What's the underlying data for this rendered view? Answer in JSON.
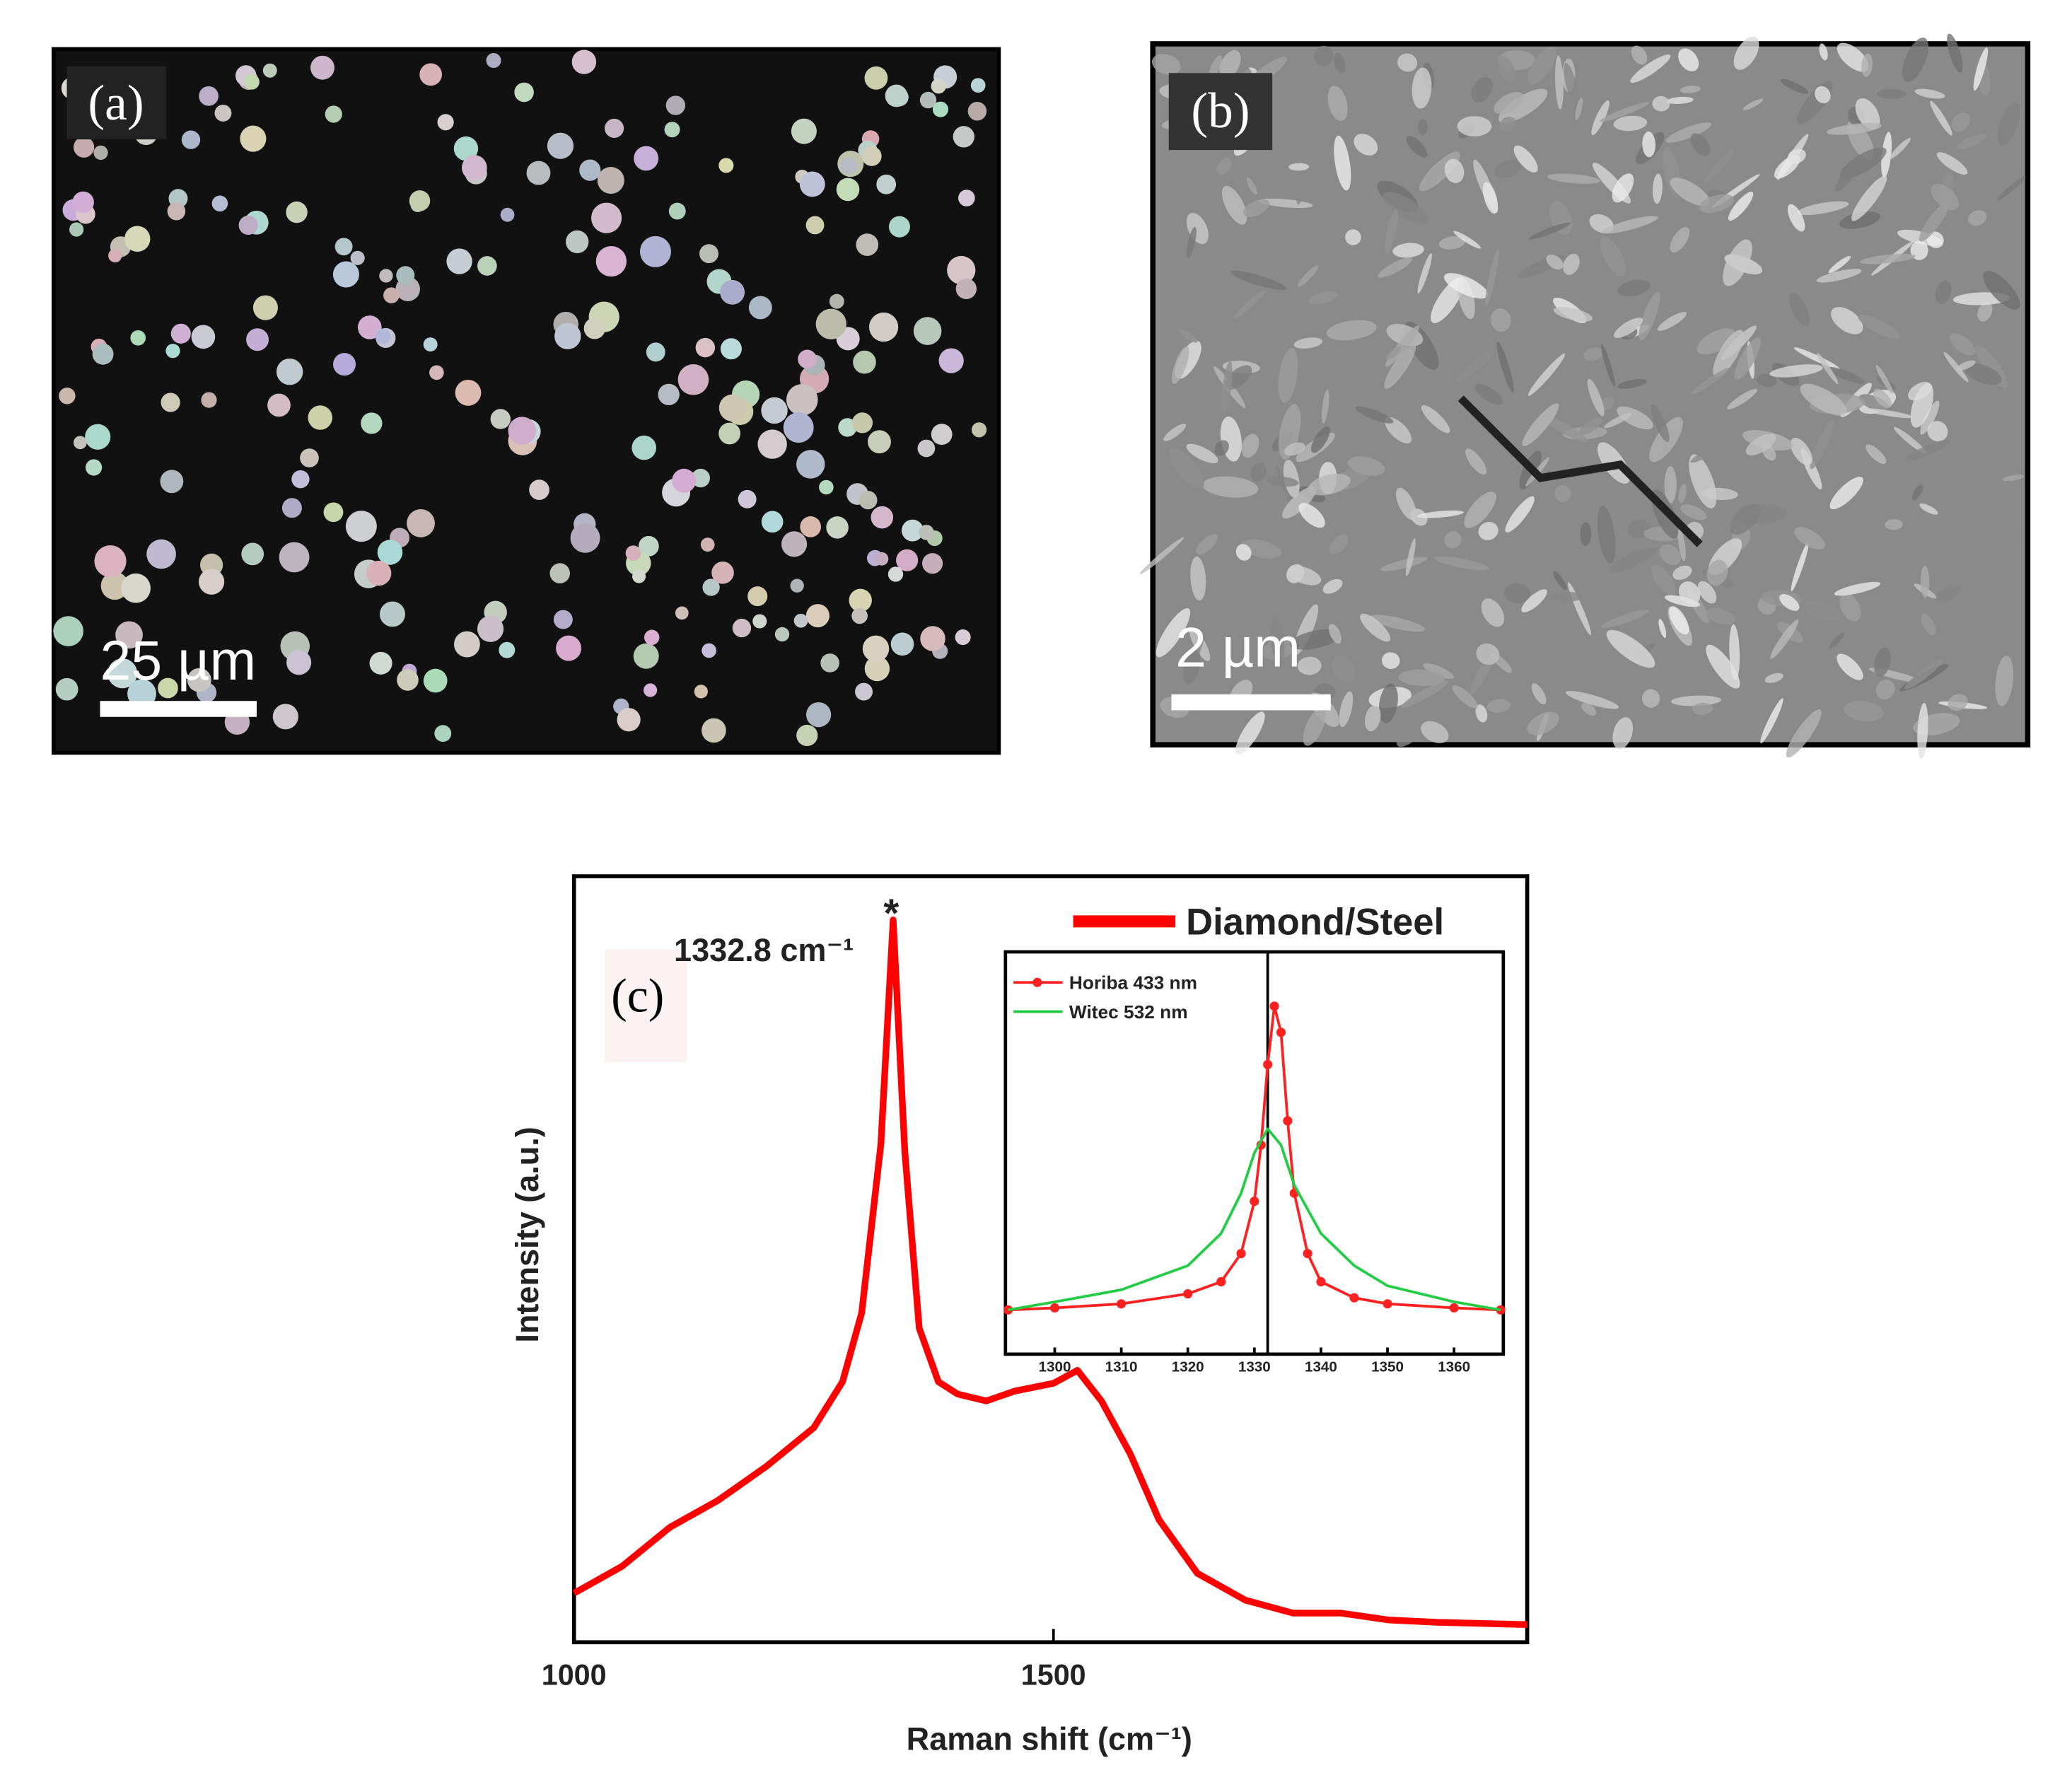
{
  "panels": [
    {
      "label": "(a)",
      "scale_bar": "25 µm"
    },
    {
      "label": "(b)",
      "scale_bar": "2 µm"
    }
  ],
  "chart_data": [
    {
      "type": "line",
      "panel_label": "(c)",
      "x_label": "Raman shift (cm⁻¹)",
      "y_label": "Intensity (a.u.)",
      "annotations": [
        "1332.8 cm⁻¹",
        "*"
      ],
      "xlim": [
        1000,
        1994
      ],
      "xticks": [
        1000,
        1500
      ],
      "ylim": [
        0,
        100
      ],
      "series": [
        {
          "name": "Diamond/Steel",
          "color": "#ff0000",
          "x": [
            1000,
            1050,
            1100,
            1150,
            1200,
            1250,
            1280,
            1300,
            1320,
            1332.8,
            1345,
            1360,
            1380,
            1400,
            1430,
            1460,
            1500,
            1525,
            1550,
            1580,
            1610,
            1650,
            1700,
            1750,
            1800,
            1850,
            1900,
            1994
          ],
          "values": [
            6.4,
            9.9,
            15,
            18.5,
            22.9,
            28,
            34,
            43,
            65,
            94.3,
            64,
            41,
            34,
            32.4,
            31.5,
            32.8,
            33.8,
            35.5,
            31.5,
            24.6,
            16,
            9,
            5.5,
            3.8,
            3.8,
            2.9,
            2.6,
            2.3
          ]
        }
      ]
    },
    {
      "type": "line",
      "xlim": [
        1292.6,
        1367.4
      ],
      "xticks": [
        1300,
        1310,
        1320,
        1330,
        1340,
        1350,
        1360
      ],
      "ylim": [
        0,
        100
      ],
      "vline": 1332,
      "series": [
        {
          "name": "Horiba 433 nm",
          "color": "#ff2020",
          "markers": true,
          "x": [
            1293,
            1300,
            1310,
            1320,
            1325,
            1328,
            1330,
            1331,
            1332,
            1333,
            1334,
            1335,
            1336,
            1338,
            1340,
            1345,
            1350,
            1360,
            1367
          ],
          "values": [
            11,
            11.5,
            12.5,
            15,
            18,
            25,
            38,
            52,
            72,
            86.5,
            80,
            58,
            40,
            25,
            18,
            14,
            12.5,
            11.5,
            11
          ]
        },
        {
          "name": "Witec 532 nm",
          "color": "#22cc44",
          "markers": false,
          "x": [
            1293,
            1300,
            1310,
            1320,
            1325,
            1328,
            1330,
            1332,
            1334,
            1336,
            1340,
            1345,
            1350,
            1360,
            1367
          ],
          "values": [
            11,
            13,
            16,
            22,
            30,
            40,
            50,
            56,
            52,
            42,
            30,
            22,
            17,
            13,
            11
          ]
        }
      ]
    }
  ]
}
